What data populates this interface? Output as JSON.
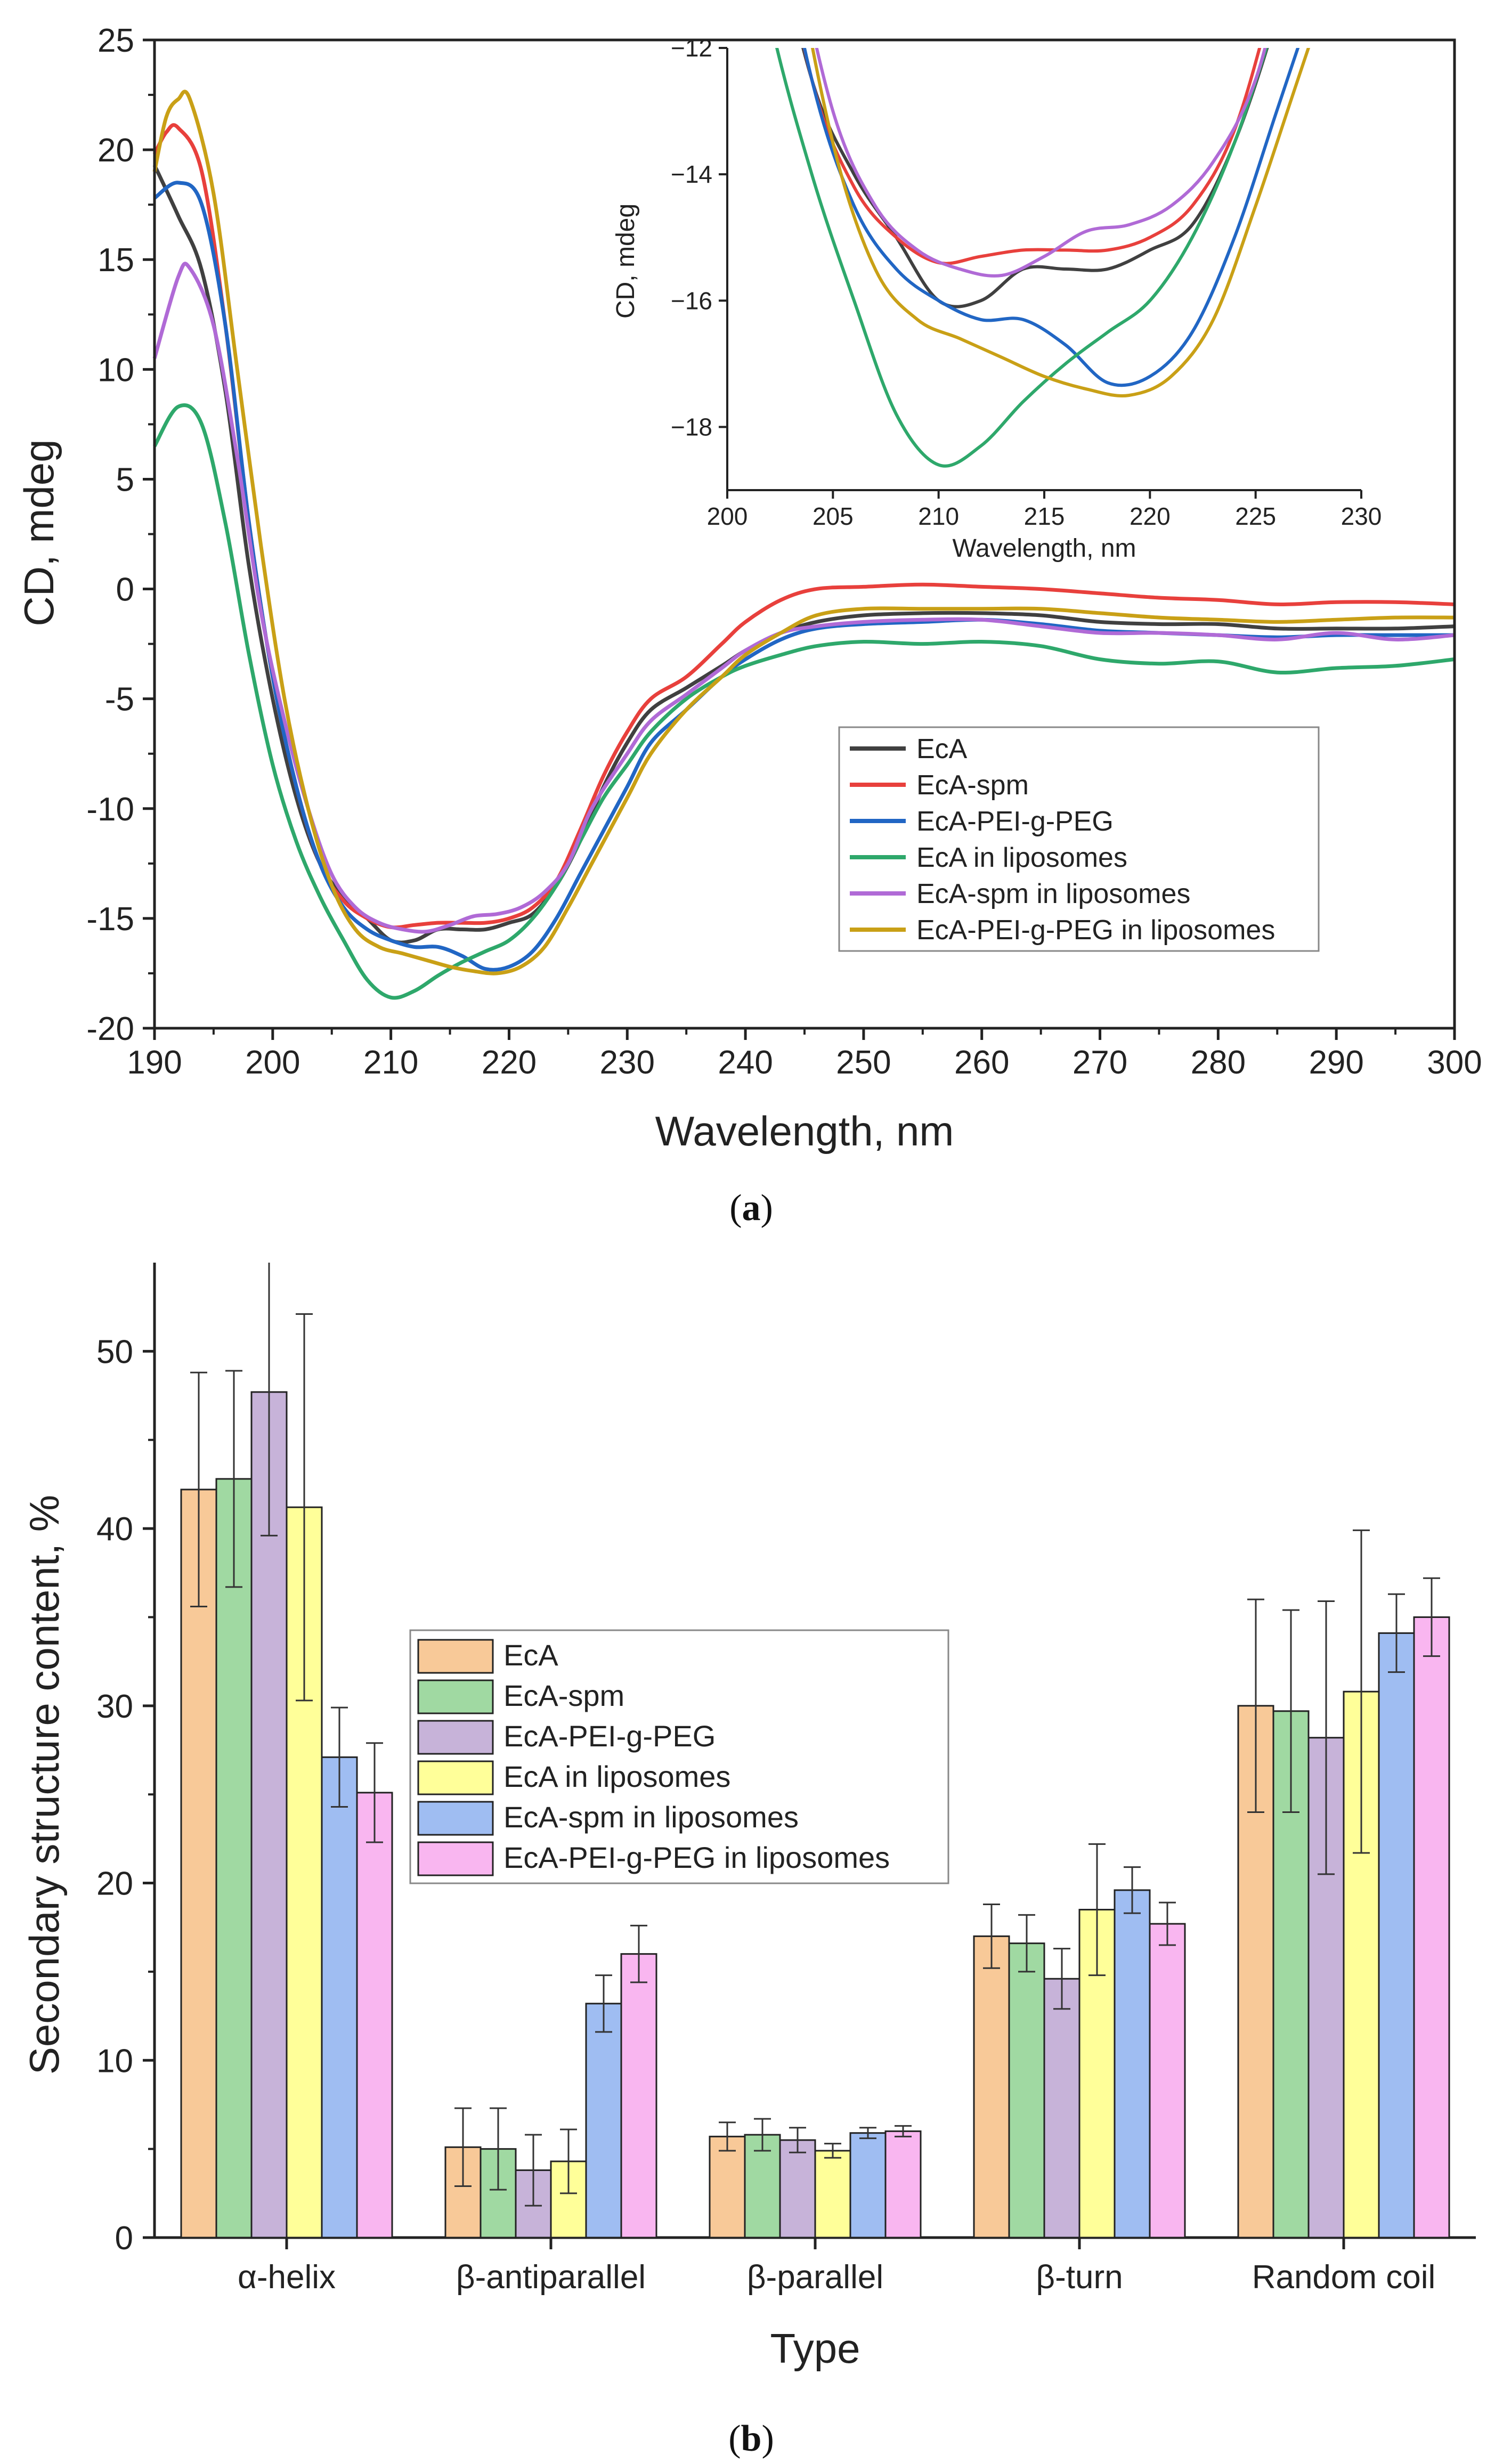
{
  "chart_data": [
    {
      "type": "line",
      "panel": "a",
      "panel_label": {
        "open": "(",
        "letter": "a",
        "close": ")"
      },
      "xlabel": "Wavelength, nm",
      "ylabel": "CD, mdeg",
      "xlim": [
        190,
        300
      ],
      "ylim": [
        -20,
        25
      ],
      "xticks": [
        190,
        200,
        210,
        220,
        230,
        240,
        250,
        260,
        270,
        280,
        290,
        300
      ],
      "yticks": [
        -20,
        -15,
        -10,
        -5,
        0,
        5,
        10,
        15,
        20,
        25
      ],
      "legend_position": "center-right",
      "series": [
        {
          "name": "EcA",
          "color": "#404040",
          "points": [
            [
              190,
              19.3
            ],
            [
              192,
              17
            ],
            [
              194,
              14.5
            ],
            [
              196,
              9
            ],
            [
              198,
              1
            ],
            [
              200,
              -5
            ],
            [
              202,
              -9.5
            ],
            [
              204,
              -12.5
            ],
            [
              206,
              -14
            ],
            [
              208,
              -15
            ],
            [
              210,
              -16
            ],
            [
              212,
              -16
            ],
            [
              214,
              -15.5
            ],
            [
              216,
              -15.5
            ],
            [
              218,
              -15.5
            ],
            [
              220,
              -15.2
            ],
            [
              222,
              -14.8
            ],
            [
              224,
              -13.5
            ],
            [
              226,
              -11.5
            ],
            [
              228,
              -9
            ],
            [
              230,
              -7
            ],
            [
              232,
              -5.5
            ],
            [
              235,
              -4.5
            ],
            [
              238,
              -3.5
            ],
            [
              240,
              -2.8
            ],
            [
              243,
              -2
            ],
            [
              246,
              -1.5
            ],
            [
              250,
              -1.2
            ],
            [
              255,
              -1.1
            ],
            [
              260,
              -1.1
            ],
            [
              265,
              -1.2
            ],
            [
              270,
              -1.5
            ],
            [
              275,
              -1.6
            ],
            [
              280,
              -1.6
            ],
            [
              285,
              -1.8
            ],
            [
              290,
              -1.8
            ],
            [
              295,
              -1.8
            ],
            [
              300,
              -1.7
            ]
          ]
        },
        {
          "name": "EcA-spm",
          "color": "#e8403c",
          "points": [
            [
              190,
              19.8
            ],
            [
              191,
              20.8
            ],
            [
              192,
              21
            ],
            [
              194,
              19
            ],
            [
              196,
              12
            ],
            [
              198,
              3
            ],
            [
              200,
              -4
            ],
            [
              202,
              -9
            ],
            [
              204,
              -12.5
            ],
            [
              206,
              -14.2
            ],
            [
              208,
              -15
            ],
            [
              210,
              -15.4
            ],
            [
              212,
              -15.3
            ],
            [
              214,
              -15.2
            ],
            [
              216,
              -15.2
            ],
            [
              218,
              -15.2
            ],
            [
              220,
              -15
            ],
            [
              222,
              -14.5
            ],
            [
              224,
              -13.3
            ],
            [
              226,
              -11
            ],
            [
              228,
              -8.5
            ],
            [
              230,
              -6.5
            ],
            [
              232,
              -5
            ],
            [
              235,
              -4
            ],
            [
              238,
              -2.5
            ],
            [
              240,
              -1.5
            ],
            [
              243,
              -0.5
            ],
            [
              246,
              0
            ],
            [
              250,
              0.1
            ],
            [
              255,
              0.2
            ],
            [
              260,
              0.1
            ],
            [
              265,
              0
            ],
            [
              270,
              -0.2
            ],
            [
              275,
              -0.4
            ],
            [
              280,
              -0.5
            ],
            [
              285,
              -0.7
            ],
            [
              290,
              -0.6
            ],
            [
              295,
              -0.6
            ],
            [
              300,
              -0.7
            ]
          ]
        },
        {
          "name": "EcA-PEI-g-PEG",
          "color": "#2166c4",
          "points": [
            [
              190,
              17.8
            ],
            [
              192,
              18.5
            ],
            [
              194,
              17.5
            ],
            [
              196,
              12
            ],
            [
              198,
              3
            ],
            [
              200,
              -4
            ],
            [
              202,
              -9
            ],
            [
              204,
              -12.5
            ],
            [
              206,
              -14.5
            ],
            [
              208,
              -15.5
            ],
            [
              210,
              -16
            ],
            [
              212,
              -16.3
            ],
            [
              214,
              -16.3
            ],
            [
              216,
              -16.7
            ],
            [
              218,
              -17.3
            ],
            [
              220,
              -17.2
            ],
            [
              222,
              -16.5
            ],
            [
              224,
              -15
            ],
            [
              226,
              -13
            ],
            [
              228,
              -11
            ],
            [
              230,
              -9
            ],
            [
              232,
              -7
            ],
            [
              235,
              -5.5
            ],
            [
              238,
              -4
            ],
            [
              240,
              -3.2
            ],
            [
              243,
              -2.3
            ],
            [
              246,
              -1.8
            ],
            [
              250,
              -1.6
            ],
            [
              255,
              -1.5
            ],
            [
              260,
              -1.4
            ],
            [
              265,
              -1.6
            ],
            [
              270,
              -1.9
            ],
            [
              275,
              -2
            ],
            [
              280,
              -2.1
            ],
            [
              285,
              -2.2
            ],
            [
              290,
              -2.1
            ],
            [
              295,
              -2.1
            ],
            [
              300,
              -2.1
            ]
          ]
        },
        {
          "name": "EcA in liposomes",
          "color": "#2ea86b",
          "points": [
            [
              190,
              6.5
            ],
            [
              192,
              8.3
            ],
            [
              194,
              7.5
            ],
            [
              196,
              3
            ],
            [
              198,
              -3
            ],
            [
              200,
              -8
            ],
            [
              202,
              -11.5
            ],
            [
              204,
              -14
            ],
            [
              206,
              -16
            ],
            [
              208,
              -17.8
            ],
            [
              210,
              -18.6
            ],
            [
              212,
              -18.3
            ],
            [
              214,
              -17.6
            ],
            [
              216,
              -17
            ],
            [
              218,
              -16.5
            ],
            [
              220,
              -16
            ],
            [
              222,
              -15
            ],
            [
              224,
              -13.5
            ],
            [
              226,
              -11.5
            ],
            [
              228,
              -9.5
            ],
            [
              230,
              -8
            ],
            [
              232,
              -6.5
            ],
            [
              235,
              -5
            ],
            [
              238,
              -4
            ],
            [
              240,
              -3.5
            ],
            [
              243,
              -3
            ],
            [
              246,
              -2.6
            ],
            [
              250,
              -2.4
            ],
            [
              255,
              -2.5
            ],
            [
              260,
              -2.4
            ],
            [
              265,
              -2.6
            ],
            [
              270,
              -3.2
            ],
            [
              275,
              -3.4
            ],
            [
              280,
              -3.3
            ],
            [
              285,
              -3.8
            ],
            [
              290,
              -3.6
            ],
            [
              295,
              -3.5
            ],
            [
              300,
              -3.2
            ]
          ]
        },
        {
          "name": "EcA-spm in liposomes",
          "color": "#b06ad6",
          "points": [
            [
              190,
              10.5
            ],
            [
              192,
              14.2
            ],
            [
              193,
              14.6
            ],
            [
              195,
              12
            ],
            [
              197,
              6
            ],
            [
              199,
              -1
            ],
            [
              201,
              -6
            ],
            [
              203,
              -10
            ],
            [
              205,
              -13
            ],
            [
              207,
              -14.5
            ],
            [
              209,
              -15.2
            ],
            [
              211,
              -15.5
            ],
            [
              213,
              -15.6
            ],
            [
              215,
              -15.3
            ],
            [
              217,
              -14.9
            ],
            [
              219,
              -14.8
            ],
            [
              221,
              -14.5
            ],
            [
              223,
              -13.8
            ],
            [
              225,
              -12.5
            ],
            [
              227,
              -10
            ],
            [
              230,
              -7.5
            ],
            [
              232,
              -6
            ],
            [
              235,
              -4.8
            ],
            [
              238,
              -3.6
            ],
            [
              240,
              -2.8
            ],
            [
              243,
              -2
            ],
            [
              246,
              -1.7
            ],
            [
              250,
              -1.5
            ],
            [
              255,
              -1.4
            ],
            [
              260,
              -1.4
            ],
            [
              265,
              -1.7
            ],
            [
              270,
              -2
            ],
            [
              275,
              -2
            ],
            [
              280,
              -2.1
            ],
            [
              285,
              -2.3
            ],
            [
              290,
              -2
            ],
            [
              295,
              -2.3
            ],
            [
              300,
              -2.1
            ]
          ]
        },
        {
          "name": "EcA-PEI-g-PEG  in liposomes",
          "color": "#c9a016",
          "points": [
            [
              190,
              19
            ],
            [
              191,
              21.5
            ],
            [
              192,
              22.3
            ],
            [
              193,
              22.3
            ],
            [
              195,
              18
            ],
            [
              197,
              10
            ],
            [
              199,
              2
            ],
            [
              201,
              -5
            ],
            [
              203,
              -10
            ],
            [
              205,
              -13.5
            ],
            [
              207,
              -15.5
            ],
            [
              209,
              -16.3
            ],
            [
              211,
              -16.6
            ],
            [
              213,
              -16.9
            ],
            [
              215,
              -17.2
            ],
            [
              217,
              -17.4
            ],
            [
              219,
              -17.5
            ],
            [
              221,
              -17.2
            ],
            [
              223,
              -16.3
            ],
            [
              225,
              -14.5
            ],
            [
              227,
              -12.5
            ],
            [
              230,
              -9.5
            ],
            [
              232,
              -7.5
            ],
            [
              235,
              -5.5
            ],
            [
              238,
              -4
            ],
            [
              240,
              -3
            ],
            [
              243,
              -2
            ],
            [
              246,
              -1.2
            ],
            [
              250,
              -0.9
            ],
            [
              255,
              -0.9
            ],
            [
              260,
              -0.9
            ],
            [
              265,
              -0.9
            ],
            [
              270,
              -1.1
            ],
            [
              275,
              -1.3
            ],
            [
              280,
              -1.4
            ],
            [
              285,
              -1.5
            ],
            [
              290,
              -1.4
            ],
            [
              295,
              -1.3
            ],
            [
              300,
              -1.3
            ]
          ]
        }
      ],
      "inset": {
        "xlabel": "Wavelength, nm",
        "ylabel": "CD, mdeg",
        "xlim": [
          200,
          230
        ],
        "ylim": [
          -19,
          -12
        ],
        "xticks": [
          200,
          205,
          210,
          215,
          220,
          225,
          230
        ],
        "yticks": [
          -18,
          -16,
          -14,
          -12
        ],
        "ytick_labels": [
          "−18",
          "−16",
          "−14",
          "−12"
        ]
      }
    },
    {
      "type": "bar",
      "panel": "b",
      "panel_label": {
        "open": "(",
        "letter": "b",
        "close": ")"
      },
      "xlabel": "Type",
      "ylabel": "Secondary structure content, %",
      "ylim": [
        0,
        55
      ],
      "yticks": [
        0,
        10,
        20,
        30,
        40,
        50
      ],
      "legend_position": "upper-center",
      "categories": [
        "α-helix",
        "β-antiparallel",
        "β-parallel",
        "β-turn",
        "Random coil"
      ],
      "series": [
        {
          "name": "EcA",
          "color": "#f8c998",
          "values": [
            42.2,
            5.1,
            5.7,
            17.0,
            30.0
          ],
          "errors": [
            6.6,
            2.2,
            0.8,
            1.8,
            6.0
          ]
        },
        {
          "name": "EcA-spm",
          "color": "#a0d9a2",
          "values": [
            42.8,
            5.0,
            5.8,
            16.6,
            29.7
          ],
          "errors": [
            6.1,
            2.3,
            0.9,
            1.6,
            5.7
          ]
        },
        {
          "name": "EcA-PEI-g-PEG",
          "color": "#c7b3d9",
          "values": [
            47.7,
            3.8,
            5.5,
            14.6,
            28.2
          ],
          "errors": [
            8.1,
            2.0,
            0.7,
            1.7,
            7.7
          ]
        },
        {
          "name": "EcA in liposomes",
          "color": "#ffff99",
          "values": [
            41.2,
            4.3,
            4.9,
            18.5,
            30.8
          ],
          "errors": [
            10.9,
            1.8,
            0.4,
            3.7,
            9.1
          ]
        },
        {
          "name": "EcA-spm in liposomes",
          "color": "#9fbdf2",
          "values": [
            27.1,
            13.2,
            5.9,
            19.6,
            34.1
          ],
          "errors": [
            2.8,
            1.6,
            0.3,
            1.3,
            2.2
          ]
        },
        {
          "name": "EcA-PEI-g-PEG  in liposomes",
          "color": "#f9b6f0",
          "values": [
            25.1,
            16.0,
            6.0,
            17.7,
            35.0
          ],
          "errors": [
            2.8,
            1.6,
            0.3,
            1.2,
            2.2
          ]
        }
      ]
    }
  ]
}
